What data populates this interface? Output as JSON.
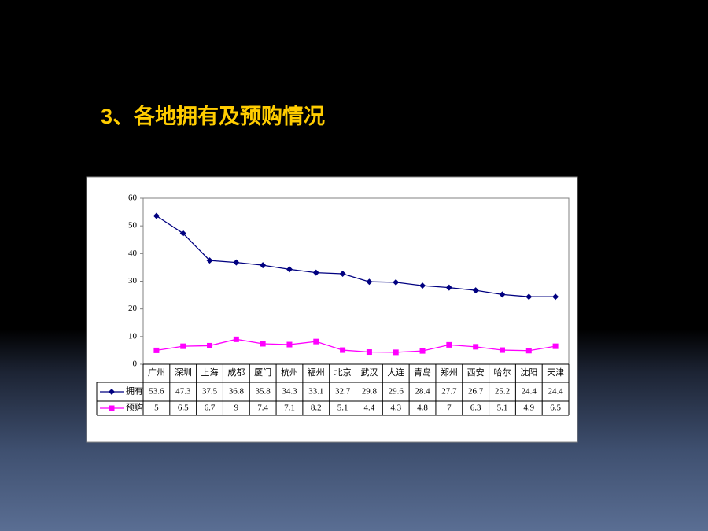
{
  "title": "3、各地拥有及预购情况",
  "chart_data": {
    "type": "line",
    "categories": [
      "广州",
      "深圳",
      "上海",
      "成都",
      "厦门",
      "杭州",
      "福州",
      "北京",
      "武汉",
      "大连",
      "青岛",
      "郑州",
      "西安",
      "哈尔",
      "沈阳",
      "天津"
    ],
    "series": [
      {
        "name": "拥有",
        "color": "#000080",
        "values": [
          53.6,
          47.3,
          37.5,
          36.8,
          35.8,
          34.3,
          33.1,
          32.7,
          29.8,
          29.6,
          28.4,
          27.7,
          26.7,
          25.2,
          24.4,
          24.4
        ]
      },
      {
        "name": "预购",
        "color": "#ff00ff",
        "values": [
          5,
          6.5,
          6.7,
          9,
          7.4,
          7.1,
          8.2,
          5.1,
          4.4,
          4.3,
          4.8,
          7,
          6.3,
          5.1,
          4.9,
          6.5
        ]
      }
    ],
    "ylim": [
      0,
      60
    ],
    "yticks": [
      0,
      10,
      20,
      30,
      40,
      50,
      60
    ],
    "grid": false
  }
}
